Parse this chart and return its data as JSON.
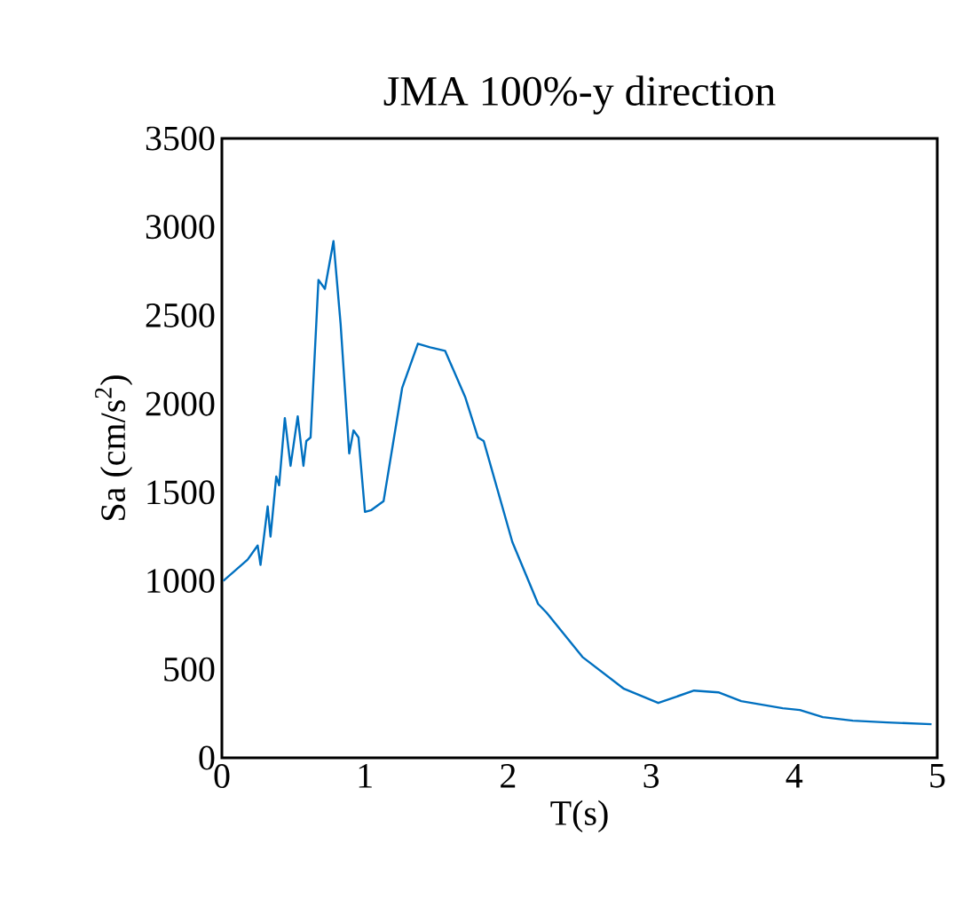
{
  "chart_data": {
    "type": "line",
    "title": "JMA 100%-y direction",
    "xlabel": "T(s)",
    "ylabel": "Sa (cm/s$^{2}$)",
    "xlim": [
      0,
      5
    ],
    "xticks": [
      0,
      1,
      2,
      3,
      4,
      5
    ],
    "ylim": [
      0,
      3500
    ],
    "yticks": [
      0,
      500,
      1000,
      1500,
      2000,
      2500,
      3000,
      3500
    ],
    "grid": false,
    "marker": "none",
    "line_style": "solid",
    "series": [
      {
        "color": "#0070c0",
        "x": [
          0.01,
          0.18,
          0.25,
          0.27,
          0.32,
          0.34,
          0.38,
          0.4,
          0.44,
          0.48,
          0.53,
          0.57,
          0.59,
          0.62,
          0.675,
          0.72,
          0.78,
          0.83,
          0.89,
          0.92,
          0.955,
          1.0,
          1.045,
          1.13,
          1.26,
          1.37,
          1.455,
          1.56,
          1.7,
          1.79,
          1.83,
          2.03,
          2.21,
          2.27,
          2.52,
          2.81,
          3.05,
          3.3,
          3.47,
          3.63,
          3.92,
          4.04,
          4.2,
          4.41,
          4.65,
          4.96
        ],
        "values": [
          1000,
          1120,
          1200,
          1090,
          1420,
          1250,
          1590,
          1540,
          1920,
          1650,
          1930,
          1650,
          1790,
          1810,
          2700,
          2650,
          2920,
          2450,
          1720,
          1850,
          1810,
          1390,
          1400,
          1450,
          2090,
          2340,
          2320,
          2300,
          2040,
          1810,
          1790,
          1220,
          870,
          820,
          570,
          390,
          310,
          380,
          370,
          320,
          280,
          270,
          230,
          210,
          200,
          190
        ]
      }
    ]
  }
}
